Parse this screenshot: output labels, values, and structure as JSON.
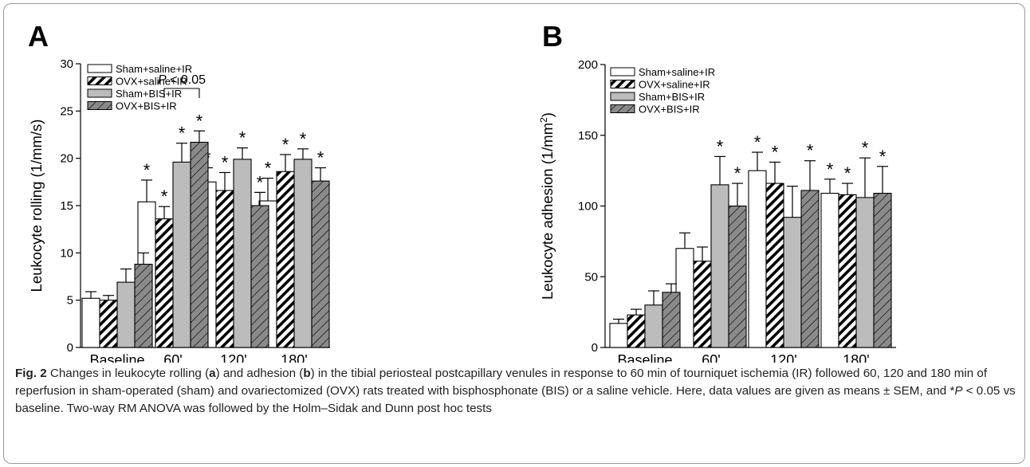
{
  "figure": {
    "caption": {
      "label": "Fig. 2",
      "p1": " Changes in leukocyte rolling (",
      "a": "a",
      "p2": ") and adhesion (",
      "b": "b",
      "p3": ") in the tibial periosteal postcapillary venules in response to 60 min of tourniquet ischemia (IR) followed 60, 120 and 180 min of reperfusion in sham-operated (sham) and ovariectomized (OVX) rats treated with bisphosphonate (BIS) or a saline vehicle. Here, data values are given as means ± SEM, and *",
      "pvar": "P",
      "p4": " < 0.05 vs baseline. Two-way RM ANOVA was followed by the Holm–Sidak and Dunn post hoc tests"
    }
  },
  "colors": {
    "white_bar": "#ffffff",
    "light_gray_bar": "#bcbcbc",
    "dark_gray_bar": "#8a8a8a",
    "hatch": "#000000"
  },
  "chart_data": [
    {
      "panel": "A",
      "type": "bar",
      "ylabel": "Leukocyte rolling (1/mm/s)",
      "ylim": [
        0,
        30
      ],
      "yticks": [
        0,
        5,
        10,
        15,
        20,
        25,
        30
      ],
      "categories": [
        "Baseline",
        "60'",
        "120'",
        "180'"
      ],
      "legend_position": "top-left",
      "series": [
        {
          "name": "Sham+saline+IR",
          "values": [
            5.2,
            15.4,
            17.5,
            15.5
          ],
          "errors": [
            0.7,
            2.3,
            1.5,
            2.4
          ],
          "significant": [
            false,
            true,
            true,
            true
          ]
        },
        {
          "name": "OVX+saline+IR",
          "values": [
            5.0,
            13.6,
            16.6,
            18.6
          ],
          "errors": [
            0.5,
            1.3,
            1.9,
            1.8
          ],
          "significant": [
            false,
            true,
            true,
            true
          ]
        },
        {
          "name": "Sham+BIS+IR",
          "values": [
            6.9,
            19.6,
            19.9,
            19.9
          ],
          "errors": [
            1.4,
            2.0,
            1.2,
            1.1
          ],
          "significant": [
            false,
            true,
            true,
            true
          ]
        },
        {
          "name": "OVX+BIS+IR",
          "values": [
            8.8,
            21.7,
            15.0,
            17.6
          ],
          "errors": [
            1.2,
            1.2,
            1.4,
            1.4
          ],
          "significant": [
            false,
            true,
            true,
            true
          ]
        }
      ],
      "bracket": {
        "label_var": "P",
        "label_rest": " < 0.05",
        "category": "60'",
        "from_series": 1,
        "to_series": 3
      },
      "marker": "*"
    },
    {
      "panel": "B",
      "type": "bar",
      "ylabel": "Leukocyte adhesion (1/mm",
      "ylabel_sup": "2",
      "ylabel_end": ")",
      "ylim": [
        0,
        200
      ],
      "yticks": [
        0,
        50,
        100,
        150,
        200
      ],
      "categories": [
        "Baseline",
        "60'",
        "120'",
        "180'"
      ],
      "legend_position": "top-left",
      "series": [
        {
          "name": "Sham+saline+IR",
          "values": [
            17,
            70,
            125,
            109
          ],
          "errors": [
            3,
            11,
            13,
            10
          ],
          "significant": [
            false,
            false,
            true,
            true
          ]
        },
        {
          "name": "OVX+saline+IR",
          "values": [
            23,
            61,
            116,
            108
          ],
          "errors": [
            4,
            10,
            15,
            8
          ],
          "significant": [
            false,
            false,
            true,
            true
          ]
        },
        {
          "name": "Sham+BIS+IR",
          "values": [
            30,
            115,
            92,
            106
          ],
          "errors": [
            10,
            20,
            22,
            28
          ],
          "significant": [
            false,
            true,
            false,
            true
          ]
        },
        {
          "name": "OVX+BIS+IR",
          "values": [
            39,
            100,
            111,
            109
          ],
          "errors": [
            6,
            16,
            21,
            19
          ],
          "significant": [
            false,
            true,
            true,
            true
          ]
        }
      ],
      "marker": "*"
    }
  ]
}
